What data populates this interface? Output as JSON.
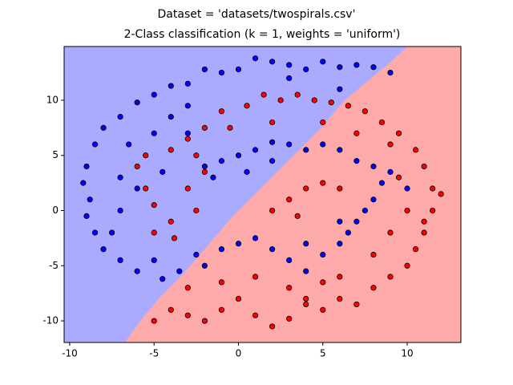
{
  "chart_data": {
    "type": "scatter",
    "title": "Dataset = 'datasets/twospirals.csv'",
    "subtitle": "2-Class classification (k = 1, weights = 'uniform')",
    "xlim": [
      -10.33,
      13.18
    ],
    "ylim": [
      -11.96,
      14.87
    ],
    "xticks": [
      -10,
      -5,
      0,
      5,
      10
    ],
    "yticks": [
      -10,
      -5,
      0,
      5,
      10
    ],
    "grid": false,
    "series": [
      {
        "color": "#0000ff",
        "x": [
          9,
          8,
          7,
          6,
          5,
          4,
          3,
          2,
          1,
          0,
          -1,
          -2,
          -3,
          -4,
          -5,
          -6,
          -7,
          -8,
          -8.5,
          -9,
          -9.2,
          -8.8,
          -9,
          -8.5,
          -8,
          -7,
          -6,
          -5,
          -4.5,
          -3.5,
          -2.5,
          -1,
          0,
          -2,
          1,
          2,
          3,
          4,
          5,
          6,
          6.5,
          7,
          7.5,
          8,
          8.5,
          8,
          7,
          6,
          5,
          4,
          3,
          2,
          1,
          0,
          -1,
          -1.5,
          -2,
          0.5,
          2,
          -7,
          -6.5,
          -5,
          -4,
          -3,
          -6,
          -7,
          -7.5,
          3,
          6,
          10,
          9,
          6,
          4,
          -3,
          -4.5
        ],
        "values": [
          12.5,
          13,
          13.2,
          13,
          13.5,
          12.8,
          13.2,
          13.5,
          13.8,
          12.8,
          12.5,
          12.8,
          11.5,
          11.3,
          10.5,
          9.8,
          8.5,
          7.5,
          6,
          4,
          2.5,
          1,
          -0.5,
          -2,
          -3.5,
          -4.5,
          -5.5,
          -4.5,
          -6.2,
          -5.5,
          -4,
          -3.5,
          -3,
          -5,
          -2.5,
          -3.5,
          -4.5,
          -5.5,
          -4,
          -3,
          -2,
          -1,
          0,
          1,
          2.5,
          4,
          4.5,
          5.5,
          6,
          5.5,
          6,
          6.2,
          5.5,
          5,
          4.5,
          3,
          4,
          3.5,
          4.5,
          3,
          6,
          7,
          8.5,
          9.5,
          2,
          0,
          -2,
          12,
          11,
          2,
          3.5,
          -1,
          -3,
          7,
          3.5
        ]
      },
      {
        "color": "#ff0000",
        "x": [
          -5,
          -4,
          -3,
          -2,
          -1,
          0,
          1,
          2,
          3,
          4,
          5,
          6,
          7,
          8,
          9,
          10,
          10.5,
          11,
          11.5,
          11.5,
          11,
          10.5,
          9.5,
          8.5,
          7.5,
          6.5,
          5.5,
          4.5,
          3.5,
          2.5,
          1.5,
          0.5,
          -1,
          -2,
          -3,
          -4,
          -5.5,
          -6,
          -5.5,
          -5,
          -4,
          -3.8,
          -5,
          -2.5,
          -3,
          -2,
          3,
          4,
          5,
          6,
          2,
          3.5,
          6,
          5,
          3,
          1,
          -1,
          -3,
          9,
          10,
          9.5,
          9,
          7,
          5,
          2,
          -0.5,
          -2.5,
          4,
          8,
          11,
          12
        ],
        "values": [
          -10,
          -9,
          -9.5,
          -10,
          -9,
          -8,
          -9.5,
          -10.5,
          -9.8,
          -8.5,
          -9,
          -8,
          -8.5,
          -7,
          -6,
          -5,
          -3.5,
          -2,
          0,
          2,
          4,
          5.5,
          7,
          8,
          9,
          9.5,
          9.8,
          10,
          10.5,
          10,
          10.5,
          9.5,
          9,
          7.5,
          6.5,
          5.5,
          5,
          4,
          2,
          0.5,
          -1,
          -2.5,
          -2,
          0,
          2,
          3.5,
          1,
          2,
          2.5,
          2,
          0,
          -0.5,
          -6,
          -6.5,
          -7,
          -6,
          -6.5,
          -7,
          -2,
          0,
          3,
          6,
          7,
          8,
          8,
          7.5,
          5,
          -8,
          -4,
          -1,
          1.5
        ]
      }
    ]
  }
}
